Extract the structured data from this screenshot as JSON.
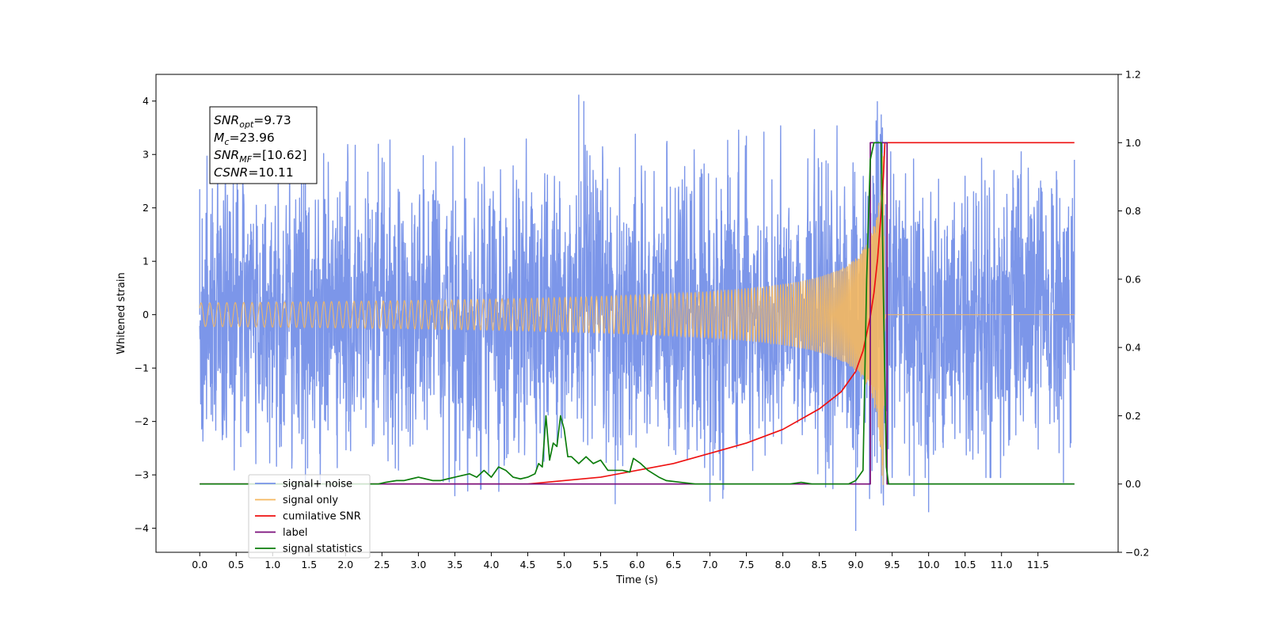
{
  "chart_data": {
    "type": "line",
    "xlabel": "Time (s)",
    "ylabel": "Whitened strain",
    "xlim": [
      -0.6,
      12.6
    ],
    "ylim": [
      -4.45,
      4.5
    ],
    "y2lim": [
      -0.2,
      1.2
    ],
    "grid": false,
    "legend_placement": "lower-left",
    "x_ticks": [
      0.0,
      0.5,
      1.0,
      1.5,
      2.0,
      2.5,
      3.0,
      3.5,
      4.0,
      4.5,
      5.0,
      5.5,
      6.0,
      6.5,
      7.0,
      7.5,
      8.0,
      8.5,
      9.0,
      9.5,
      10.0,
      10.5,
      11.0,
      11.5
    ],
    "x_tick_labels": [
      "0.0",
      "0.5",
      "1.0",
      "1.5",
      "2.0",
      "2.5",
      "3.0",
      "3.5",
      "4.0",
      "4.5",
      "5.0",
      "5.5",
      "6.0",
      "6.5",
      "7.0",
      "7.5",
      "8.0",
      "8.5",
      "9.0",
      "9.5",
      "10.0",
      "10.5",
      "11.0",
      "11.5"
    ],
    "y_ticks": [
      4,
      3,
      2,
      1,
      0,
      -1,
      -2,
      -3,
      -4
    ],
    "y_tick_labels": [
      "4",
      "3",
      "2",
      "1",
      "0",
      "−1",
      "−2",
      "−3",
      "−4"
    ],
    "y2_ticks": [
      1.2,
      1.0,
      0.8,
      0.6,
      0.4,
      0.2,
      0.0,
      -0.2
    ],
    "y2_tick_labels": [
      "1.2",
      "1.0",
      "0.8",
      "0.6",
      "0.4",
      "0.2",
      "0.0",
      "−0.2"
    ],
    "annotation": {
      "snr_opt": {
        "base": "SNR",
        "sub": "opt",
        "value": "=9.73"
      },
      "mc": {
        "base": "M",
        "sub": "c",
        "value": "=23.96"
      },
      "snr_mf": {
        "base": "SNR",
        "sub": "MF",
        "value": "=[10.62]"
      },
      "csnr": {
        "base": "CSNR",
        "value": "=10.11"
      }
    },
    "series": [
      {
        "name": "signal+ noise",
        "color": "#7893e8",
        "axis": "left",
        "kind": "noisy strain",
        "x_range": [
          0.0,
          12.0
        ],
        "band": [
          -2.0,
          2.0
        ],
        "peaks": [
          [
            0.0,
            2.35
          ],
          [
            1.45,
            3.2
          ],
          [
            2.45,
            3.2
          ],
          [
            5.2,
            4.12
          ],
          [
            5.27,
            4.0
          ],
          [
            7.5,
            3.35
          ],
          [
            9.35,
            3.75
          ],
          [
            12.0,
            2.9
          ]
        ],
        "troughs": [
          [
            1.45,
            -3.15
          ],
          [
            3.5,
            -3.4
          ],
          [
            5.7,
            -3.55
          ],
          [
            7.0,
            -3.5
          ],
          [
            9.0,
            -4.05
          ],
          [
            9.35,
            -3.35
          ],
          [
            9.8,
            -3.4
          ],
          [
            10.0,
            -3.7
          ],
          [
            11.85,
            -3.15
          ]
        ]
      },
      {
        "name": "signal only",
        "color": "#f5b85f",
        "axis": "left",
        "kind": "chirp",
        "x_range": [
          0.0,
          12.0
        ],
        "merger_time": 9.38,
        "peak_amplitude": 3.2
      },
      {
        "name": "cumilative SNR",
        "color": "#ee1111",
        "axis": "right",
        "x": [
          0.0,
          4.5,
          5.5,
          6.5,
          7.0,
          7.5,
          8.0,
          8.5,
          8.8,
          9.0,
          9.1,
          9.2,
          9.25,
          9.3,
          9.35,
          9.38,
          9.4,
          12.0
        ],
        "y": [
          0.0,
          0.0,
          0.02,
          0.06,
          0.09,
          0.12,
          0.16,
          0.22,
          0.27,
          0.33,
          0.39,
          0.49,
          0.56,
          0.66,
          0.8,
          0.9,
          1.0,
          1.0
        ]
      },
      {
        "name": "label",
        "color": "#7a0e7a",
        "axis": "right",
        "x": [
          0.0,
          9.2,
          9.2,
          9.43,
          9.43,
          12.0
        ],
        "y": [
          0.0,
          0.0,
          1.0,
          1.0,
          0.0,
          0.0
        ]
      },
      {
        "name": "signal statistics",
        "color": "#0c7d0c",
        "axis": "right",
        "x": [
          0.0,
          2.45,
          2.55,
          2.7,
          2.8,
          2.9,
          3.0,
          3.1,
          3.2,
          3.3,
          3.4,
          3.5,
          3.6,
          3.7,
          3.8,
          3.9,
          4.0,
          4.1,
          4.2,
          4.3,
          4.4,
          4.5,
          4.6,
          4.65,
          4.7,
          4.75,
          4.8,
          4.85,
          4.9,
          4.95,
          5.0,
          5.05,
          5.1,
          5.2,
          5.3,
          5.4,
          5.5,
          5.6,
          5.7,
          5.8,
          5.9,
          5.95,
          6.05,
          6.15,
          6.3,
          6.4,
          6.6,
          6.8,
          7.0,
          8.1,
          8.25,
          8.4,
          8.6,
          8.9,
          9.0,
          9.1,
          9.15,
          9.2,
          9.25,
          9.3,
          9.35,
          9.38,
          9.42,
          9.45,
          9.5,
          12.0
        ],
        "y": [
          0.0,
          0.0,
          0.005,
          0.01,
          0.01,
          0.015,
          0.02,
          0.015,
          0.01,
          0.01,
          0.015,
          0.02,
          0.025,
          0.03,
          0.02,
          0.04,
          0.02,
          0.05,
          0.04,
          0.02,
          0.015,
          0.02,
          0.03,
          0.06,
          0.05,
          0.2,
          0.07,
          0.12,
          0.11,
          0.2,
          0.16,
          0.08,
          0.08,
          0.06,
          0.08,
          0.06,
          0.07,
          0.04,
          0.04,
          0.04,
          0.035,
          0.075,
          0.06,
          0.04,
          0.02,
          0.01,
          0.005,
          0.0,
          0.0,
          0.0,
          0.005,
          0.0,
          0.0,
          0.0,
          0.01,
          0.04,
          0.6,
          0.95,
          1.0,
          1.0,
          1.0,
          0.55,
          0.05,
          0.0,
          0.0,
          0.0
        ]
      }
    ],
    "legend": [
      {
        "label": "signal+ noise",
        "color": "#7893e8"
      },
      {
        "label": "signal only",
        "color": "#f5b85f"
      },
      {
        "label": "cumilative SNR",
        "color": "#ee1111"
      },
      {
        "label": "label",
        "color": "#7a0e7a"
      },
      {
        "label": "signal statistics",
        "color": "#0c7d0c"
      }
    ]
  }
}
